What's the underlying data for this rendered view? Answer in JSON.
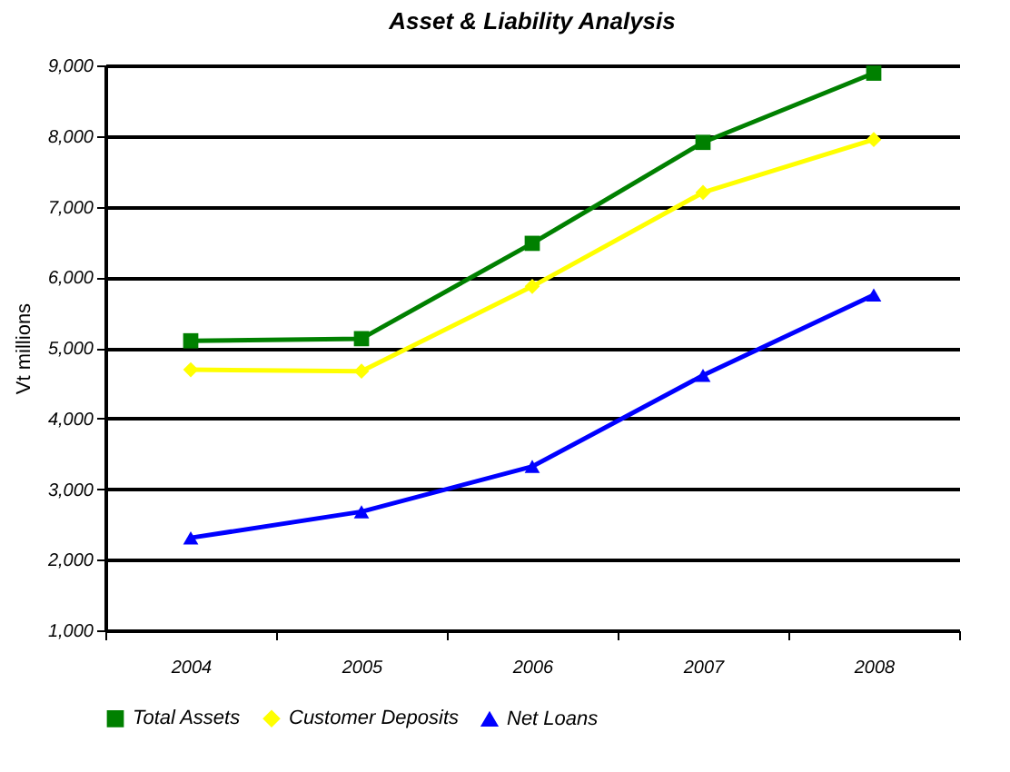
{
  "chart_data": {
    "type": "line",
    "title": "Asset & Liability Analysis",
    "ylabel": "Vt millions",
    "categories": [
      "2004",
      "2005",
      "2006",
      "2007",
      "2008"
    ],
    "series": [
      {
        "name": "Total Assets",
        "color": "#008000",
        "marker": "square",
        "values": [
          5100,
          5130,
          6480,
          7910,
          8890
        ]
      },
      {
        "name": "Customer Deposits",
        "color": "#ffff00",
        "marker": "diamond",
        "values": [
          4690,
          4670,
          5870,
          7200,
          7950
        ]
      },
      {
        "name": "Net Loans",
        "color": "#0000ff",
        "marker": "triangle",
        "values": [
          2310,
          2680,
          3320,
          4610,
          5750
        ]
      }
    ],
    "ylim": [
      1000,
      9000
    ],
    "yticks": [
      {
        "value": 1000,
        "label": "1,000"
      },
      {
        "value": 2000,
        "label": "2,000"
      },
      {
        "value": 3000,
        "label": "3,000"
      },
      {
        "value": 4000,
        "label": "4,000"
      },
      {
        "value": 5000,
        "label": "5,000"
      },
      {
        "value": 6000,
        "label": "6,000"
      },
      {
        "value": 7000,
        "label": "7,000"
      },
      {
        "value": 8000,
        "label": "8,000"
      },
      {
        "value": 9000,
        "label": "9,000"
      }
    ],
    "grid": "y",
    "legend": "bottom"
  }
}
